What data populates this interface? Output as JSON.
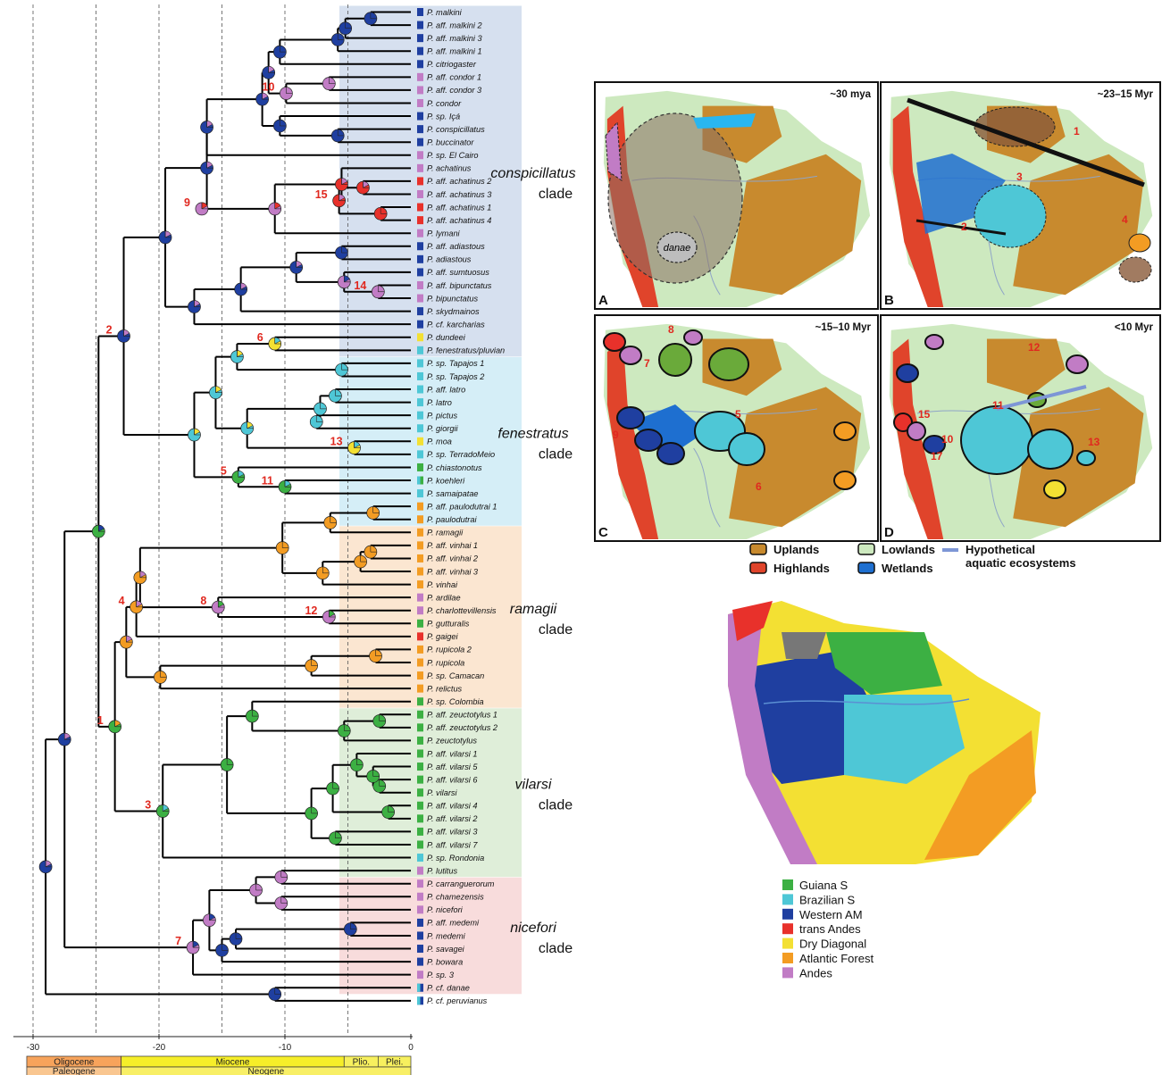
{
  "colors": {
    "guiana": "#3cb043",
    "brazilian": "#4ec7d6",
    "western": "#1f3fa0",
    "trans_andes": "#e8312b",
    "dry": "#f3e033",
    "atlantic": "#f39c23",
    "andes": "#c17cc5",
    "multi": "#6b2d6b"
  },
  "clades": [
    {
      "name": "conspicillatus",
      "suffix": "clade",
      "bg": "#d6e0ef",
      "from": 0,
      "to": 26
    },
    {
      "name": "fenestratus",
      "suffix": "clade",
      "bg": "#d5eef7",
      "from": 27,
      "to": 39
    },
    {
      "name": "ramagii",
      "suffix": "clade",
      "bg": "#fbe6d1",
      "from": 40,
      "to": 53
    },
    {
      "name": "vilarsi",
      "suffix": "clade",
      "bg": "#dfeed9",
      "from": 54,
      "to": 66
    },
    {
      "name": "nicefori",
      "suffix": "clade",
      "bg": "#f8dcdc",
      "from": 67,
      "to": 75
    }
  ],
  "taxa": [
    {
      "name": "P. malkini",
      "c": "western"
    },
    {
      "name": "P. aff. malkini 2",
      "c": "western"
    },
    {
      "name": "P. aff. malkini 3",
      "c": "western"
    },
    {
      "name": "P. aff. malkini 1",
      "c": "western"
    },
    {
      "name": "P. citriogaster",
      "c": "western"
    },
    {
      "name": "P. aff. condor 1",
      "c": "andes"
    },
    {
      "name": "P. aff. condor 3",
      "c": "andes"
    },
    {
      "name": "P. condor",
      "c": "andes"
    },
    {
      "name": "P. sp. Içá",
      "c": "western"
    },
    {
      "name": "P. conspicillatus",
      "c": "western"
    },
    {
      "name": "P. buccinator",
      "c": "western"
    },
    {
      "name": "P. sp. El Cairo",
      "c": "andes"
    },
    {
      "name": "P. achatinus",
      "c": "andes"
    },
    {
      "name": "P. aff. achatinus 2",
      "c": "trans_andes"
    },
    {
      "name": "P. aff. achatinus 3",
      "c": "andes"
    },
    {
      "name": "P. aff. achatinus 1",
      "c": "trans_andes"
    },
    {
      "name": "P. aff. achatinus 4",
      "c": "trans_andes"
    },
    {
      "name": "P. lymani",
      "c": "andes"
    },
    {
      "name": "P. aff. adiastous",
      "c": "western"
    },
    {
      "name": "P. adiastous",
      "c": "western"
    },
    {
      "name": "P. aff. sumtuosus",
      "c": "western"
    },
    {
      "name": "P. aff. bipunctatus",
      "c": "andes"
    },
    {
      "name": "P. bipunctatus",
      "c": "andes"
    },
    {
      "name": "P. skydmainos",
      "c": "western"
    },
    {
      "name": "P. cf. karcharias",
      "c": "western"
    },
    {
      "name": "P. dundeei",
      "c": "dry"
    },
    {
      "name": "P. fenestratus/pluvian",
      "c": "brazilian"
    },
    {
      "name": "P. sp. Tapajos 1",
      "c": "brazilian"
    },
    {
      "name": "P. sp. Tapajos 2",
      "c": "brazilian"
    },
    {
      "name": "P. aff. latro",
      "c": "brazilian"
    },
    {
      "name": "P. latro",
      "c": "brazilian"
    },
    {
      "name": "P. pictus",
      "c": "brazilian"
    },
    {
      "name": "P. giorgii",
      "c": "brazilian"
    },
    {
      "name": "P. moa",
      "c": "dry"
    },
    {
      "name": "P. sp. TerradoMeio",
      "c": "brazilian"
    },
    {
      "name": "P. chiastonotus",
      "c": "guiana"
    },
    {
      "name": "P. koehleri",
      "c": "guiana"
    },
    {
      "name": "P. samaipatae",
      "c": "brazilian"
    },
    {
      "name": "P. aff. paulodutrai 1",
      "c": "atlantic"
    },
    {
      "name": "P. paulodutrai",
      "c": "atlantic"
    },
    {
      "name": "P. ramagii",
      "c": "atlantic"
    },
    {
      "name": "P. aff. vinhai 1",
      "c": "atlantic"
    },
    {
      "name": "P. aff. vinhai 2",
      "c": "atlantic"
    },
    {
      "name": "P. aff. vinhai 3",
      "c": "atlantic"
    },
    {
      "name": "P. vinhai",
      "c": "atlantic"
    },
    {
      "name": "P. ardilae",
      "c": "andes"
    },
    {
      "name": "P. charlottevillensis",
      "c": "andes"
    },
    {
      "name": "P. gutturalis",
      "c": "guiana"
    },
    {
      "name": "P. gaigei",
      "c": "trans_andes"
    },
    {
      "name": "P. rupicola 2",
      "c": "atlantic"
    },
    {
      "name": "P. rupicola",
      "c": "atlantic"
    },
    {
      "name": "P. sp. Camacan",
      "c": "atlantic"
    },
    {
      "name": "P. relictus",
      "c": "atlantic"
    },
    {
      "name": "P. sp. Colombia",
      "c": "guiana"
    },
    {
      "name": "P. aff. zeuctotylus 1",
      "c": "guiana"
    },
    {
      "name": "P. aff. zeuctotylus 2",
      "c": "guiana"
    },
    {
      "name": "P. zeuctotylus",
      "c": "guiana"
    },
    {
      "name": "P. aff. vilarsi 1",
      "c": "guiana"
    },
    {
      "name": "P. aff. vilarsi 5",
      "c": "guiana"
    },
    {
      "name": "P. aff. vilarsi 6",
      "c": "guiana"
    },
    {
      "name": "P. vilarsi",
      "c": "guiana"
    },
    {
      "name": "P. aff. vilarsi 4",
      "c": "guiana"
    },
    {
      "name": "P. aff. vilarsi 2",
      "c": "guiana"
    },
    {
      "name": "P. aff. vilarsi 3",
      "c": "guiana"
    },
    {
      "name": "P. aff. vilarsi 7",
      "c": "guiana"
    },
    {
      "name": "P. sp. Rondonia",
      "c": "brazilian"
    },
    {
      "name": "P. lutitus",
      "c": "andes"
    },
    {
      "name": "P. carranguerorum",
      "c": "andes"
    },
    {
      "name": "P. chamezensis",
      "c": "andes"
    },
    {
      "name": "P. nicefori",
      "c": "andes"
    },
    {
      "name": "P. aff. medemi",
      "c": "western"
    },
    {
      "name": "P. medemi",
      "c": "western"
    },
    {
      "name": "P. savagei",
      "c": "western"
    },
    {
      "name": "P. bowara",
      "c": "western"
    },
    {
      "name": "P. sp. 3",
      "c": "andes"
    },
    {
      "name": "P. cf. danae",
      "c": "western"
    },
    {
      "name": "P. cf. peruvianus",
      "c": "western"
    }
  ],
  "axis": {
    "ticks": [
      "-30",
      "-20",
      "-10",
      "0"
    ],
    "ticks_values": [
      -30,
      -20,
      -10,
      0
    ],
    "epochs": [
      {
        "name": "Oligocene",
        "from": -30.5,
        "to": -23
      },
      {
        "name": "Miocene",
        "from": -23,
        "to": -5.3
      },
      {
        "name": "Plio.",
        "from": -5.3,
        "to": -2.6
      },
      {
        "name": "Plei.",
        "from": -2.6,
        "to": 0
      }
    ],
    "periods": [
      {
        "name": "Paleogene",
        "from": -30.5,
        "to": -23
      },
      {
        "name": "Neogene",
        "from": -23,
        "to": 0
      }
    ],
    "boundaries": [
      "23",
      "2.6"
    ],
    "boundaries_values": [
      -23,
      -2.6
    ]
  },
  "node_numbers": [
    "1",
    "2",
    "3",
    "4",
    "5",
    "6",
    "7",
    "8",
    "9",
    "10",
    "11",
    "12",
    "13",
    "14",
    "15"
  ],
  "maps": [
    {
      "letter": "A",
      "title": "~30 mya",
      "label": "danae"
    },
    {
      "letter": "B",
      "title": "~23–15 Myr"
    },
    {
      "letter": "C",
      "title": "~15–10 Myr"
    },
    {
      "letter": "D",
      "title": "<10 Myr"
    }
  ],
  "map_legend": [
    {
      "label": "Uplands",
      "color": "#c88a2e"
    },
    {
      "label": "Lowlands",
      "color": "#cde9bf"
    },
    {
      "label": "Highlands",
      "color": "#e0442b"
    },
    {
      "label": "Wetlands",
      "color": "#1e6fd0"
    },
    {
      "label": "Hypothetical aquatic ecosystems",
      "color": "#7d96d6"
    }
  ],
  "region_legend": [
    {
      "label": "Guiana S",
      "color": "#3cb043"
    },
    {
      "label": "Brazilian S",
      "color": "#4ec7d6"
    },
    {
      "label": "Western AM",
      "color": "#1f3fa0"
    },
    {
      "label": "trans Andes",
      "color": "#e8312b"
    },
    {
      "label": "Dry Diagonal",
      "color": "#f3e033"
    },
    {
      "label": "Atlantic Forest",
      "color": "#f39c23"
    },
    {
      "label": "Andes",
      "color": "#c17cc5"
    }
  ]
}
